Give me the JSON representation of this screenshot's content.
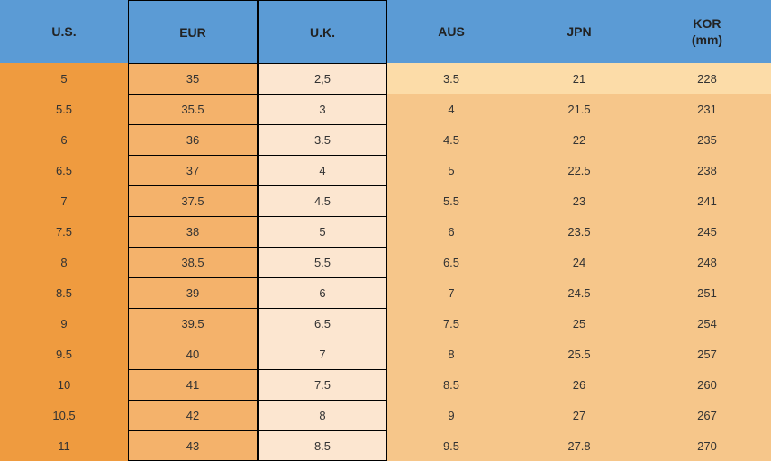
{
  "table": {
    "columns": [
      {
        "label": "U.S.",
        "bordered": false
      },
      {
        "label": "EUR",
        "bordered": true
      },
      {
        "label": "U.K.",
        "bordered": true
      },
      {
        "label": "AUS",
        "bordered": false
      },
      {
        "label": "JPN",
        "bordered": false
      },
      {
        "label": "KOR (mm)",
        "bordered": false
      }
    ],
    "rows": [
      [
        "5",
        "35",
        "2,5",
        "3.5",
        "21",
        "228"
      ],
      [
        "5.5",
        "35.5",
        "3",
        "4",
        "21.5",
        "231"
      ],
      [
        "6",
        "36",
        "3.5",
        "4.5",
        "22",
        "235"
      ],
      [
        "6.5",
        "37",
        "4",
        "5",
        "22.5",
        "238"
      ],
      [
        "7",
        "37.5",
        "4.5",
        "5.5",
        "23",
        "241"
      ],
      [
        "7.5",
        "38",
        "5",
        "6",
        "23.5",
        "245"
      ],
      [
        "8",
        "38.5",
        "5.5",
        "6.5",
        "24",
        "248"
      ],
      [
        "8.5",
        "39",
        "6",
        "7",
        "24.5",
        "251"
      ],
      [
        "9",
        "39.5",
        "6.5",
        "7.5",
        "25",
        "254"
      ],
      [
        "9.5",
        "40",
        "7",
        "8",
        "25.5",
        "257"
      ],
      [
        "10",
        "41",
        "7.5",
        "8.5",
        "26",
        "260"
      ],
      [
        "10.5",
        "42",
        "8",
        "9",
        "27",
        "267"
      ],
      [
        "11",
        "43",
        "8.5",
        "9.5",
        "27.8",
        "270"
      ]
    ],
    "colors": {
      "header_bg": "#5b9bd5",
      "orange_dark": "#ed9e42",
      "orange_light": "#fbe5d6",
      "row_odd_nonbordered": "#f7c183",
      "row_even_nonbordered": "#fbe4b5"
    },
    "bordered_column_indices": [
      1,
      2
    ]
  }
}
